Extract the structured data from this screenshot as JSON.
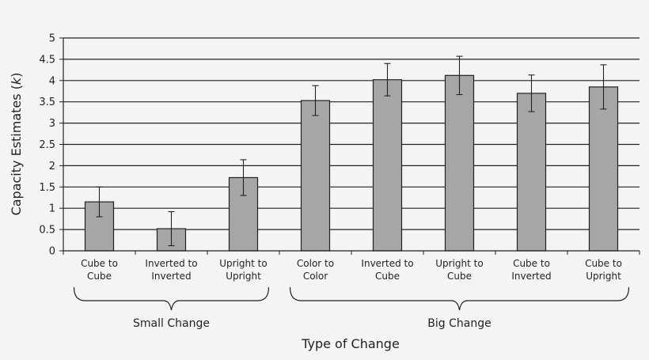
{
  "chart_data": {
    "type": "bar",
    "xlabel": "Type of Change",
    "ylabel_text": "Capacity Estimates (",
    "ylabel_var": "k",
    "ylabel_close": ")",
    "ylim": [
      0,
      5
    ],
    "yticks": [
      "0",
      "0.5",
      "1",
      "1.5",
      "2",
      "2.5",
      "3",
      "3.5",
      "4",
      "4.5",
      "5"
    ],
    "grid": true,
    "categories": [
      [
        "Cube to",
        "Cube"
      ],
      [
        "Inverted to",
        "Inverted"
      ],
      [
        "Upright to",
        "Upright"
      ],
      [
        "Color to",
        "Color"
      ],
      [
        "Inverted to",
        "Cube"
      ],
      [
        "Upright to",
        "Cube"
      ],
      [
        "Cube to",
        "Inverted"
      ],
      [
        "Cube to",
        "Upright"
      ]
    ],
    "values": [
      1.15,
      0.52,
      1.72,
      3.53,
      4.02,
      4.12,
      3.7,
      3.85
    ],
    "error": [
      0.35,
      0.4,
      0.42,
      0.35,
      0.38,
      0.45,
      0.43,
      0.52
    ],
    "groups": [
      {
        "label": "Small Change",
        "from": 0,
        "to": 2
      },
      {
        "label": "Big Change",
        "from": 3,
        "to": 7
      }
    ],
    "bar_color": "#a6a6a6"
  }
}
